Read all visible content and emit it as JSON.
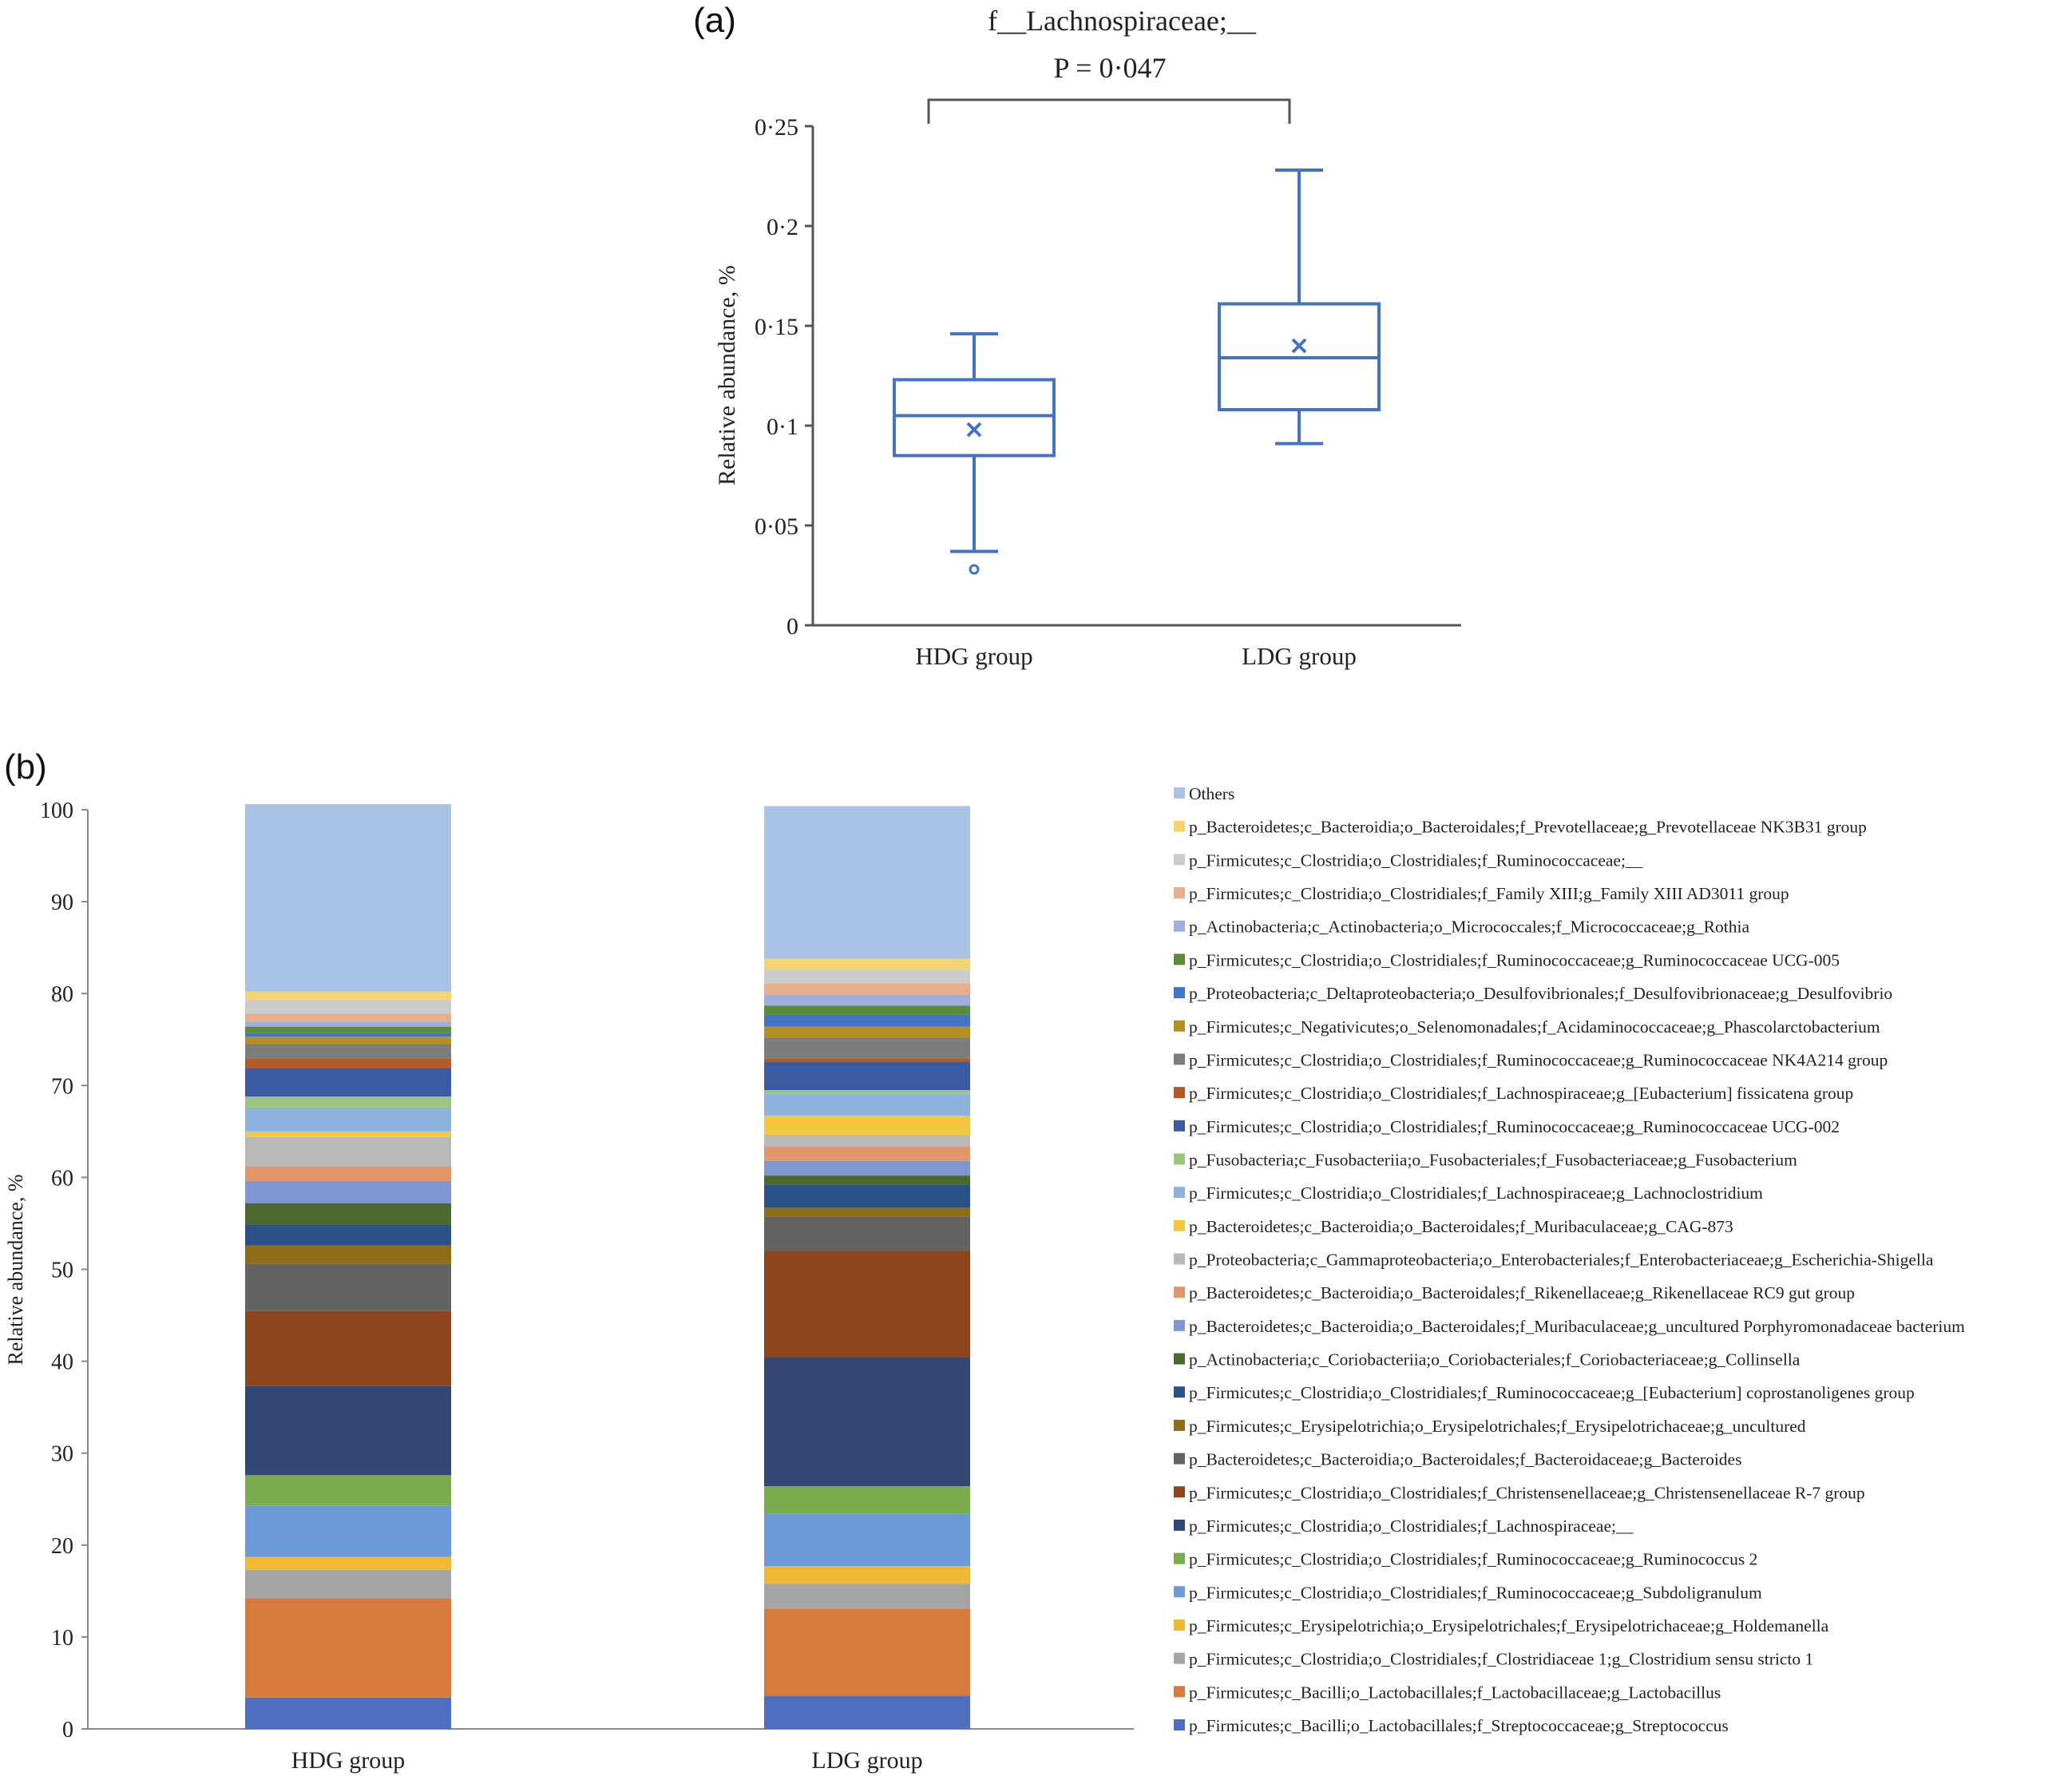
{
  "chart_data": [
    {
      "panel": "(a)",
      "type": "box",
      "title": "f__Lachnospiraceae;__",
      "annotation": "P = 0·047",
      "ylabel": "Relative abundance, %",
      "ylim": [
        0,
        0.25
      ],
      "ytick_labels": [
        "0",
        "0·05",
        "0·1",
        "0·15",
        "0·2",
        "0·25"
      ],
      "color": "#4472c4",
      "groups": [
        {
          "name": "HDG group",
          "min": 0.037,
          "q1": 0.085,
          "median": 0.105,
          "q3": 0.123,
          "max": 0.146,
          "mean": 0.098,
          "outliers": [
            0.028
          ]
        },
        {
          "name": "LDG group",
          "min": 0.091,
          "q1": 0.108,
          "median": 0.134,
          "q3": 0.161,
          "max": 0.228,
          "mean": 0.14,
          "outliers": []
        }
      ]
    },
    {
      "panel": "(b)",
      "type": "stacked_bar",
      "ylabel": "Relative abundance, %",
      "ylim": [
        0,
        100
      ],
      "ytick_labels": [
        "0",
        "10",
        "20",
        "30",
        "40",
        "50",
        "60",
        "70",
        "80",
        "90",
        "100"
      ],
      "categories": [
        "HDG group",
        "LDG group"
      ],
      "series": [
        {
          "name": "p_Firmicutes;c_Bacilli;o_Lactobacillales;f_Streptococcaceae;g_Streptococcus",
          "color": "#4e6fc0",
          "values": [
            3.4,
            3.6
          ]
        },
        {
          "name": "p_Firmicutes;c_Bacilli;o_Lactobacillales;f_Lactobacillaceae;g_Lactobacillus",
          "color": "#d77b3c",
          "values": [
            10.8,
            9.5
          ]
        },
        {
          "name": "p_Firmicutes;c_Clostridia;o_Clostridiales;f_Clostridiaceae 1;g_Clostridium sensu stricto 1",
          "color": "#a5a5a5",
          "values": [
            3.1,
            2.7
          ]
        },
        {
          "name": "p_Firmicutes;c_Erysipelotrichia;o_Erysipelotrichales;f_Erysipelotrichaceae;g_Holdemanella",
          "color": "#f0b934",
          "values": [
            1.4,
            1.9
          ]
        },
        {
          "name": "p_Firmicutes;c_Clostridia;o_Clostridiales;f_Ruminococcaceae;g_Subdoligranulum",
          "color": "#6b9bd8",
          "values": [
            5.6,
            5.7
          ]
        },
        {
          "name": "p_Firmicutes;c_Clostridia;o_Clostridiales;f_Ruminococcaceae;g_Ruminococcus 2",
          "color": "#7aab4c",
          "values": [
            3.3,
            3.0
          ]
        },
        {
          "name": "p_Firmicutes;c_Clostridia;o_Clostridiales;f_Lachnospiraceae;__",
          "color": "#334775",
          "values": [
            9.7,
            14.0
          ]
        },
        {
          "name": "p_Firmicutes;c_Clostridia;o_Clostridiales;f_Christensenellaceae;g_Christensenellaceae R-7 group",
          "color": "#8c451d",
          "values": [
            8.2,
            11.6
          ]
        },
        {
          "name": "p_Bacteroidetes;c_Bacteroidia;o_Bacteroidales;f_Bacteroidaceae;g_Bacteroides",
          "color": "#636363",
          "values": [
            5.1,
            3.7
          ]
        },
        {
          "name": "p_Firmicutes;c_Erysipelotrichia;o_Erysipelotrichales;f_Erysipelotrichaceae;g_uncultured",
          "color": "#906c16",
          "values": [
            2.0,
            1.0
          ]
        },
        {
          "name": "p_Firmicutes;c_Clostridia;o_Clostridiales;f_Ruminococcaceae;g_[Eubacterium] coprostanoligenes group",
          "color": "#2b5189",
          "values": [
            2.3,
            2.5
          ]
        },
        {
          "name": "p_Actinobacteria;c_Coriobacteriia;o_Coriobacteriales;f_Coriobacteriaceae;g_Collinsella",
          "color": "#4c6930",
          "values": [
            2.3,
            1.0
          ]
        },
        {
          "name": "p_Bacteroidetes;c_Bacteroidia;o_Bacteroidales;f_Muribaculaceae;g_uncultured Porphyromonadaceae bacterium",
          "color": "#7f96d2",
          "values": [
            2.4,
            1.6
          ]
        },
        {
          "name": "p_Bacteroidetes;c_Bacteroidia;o_Bacteroidales;f_Rikenellaceae;g_Rikenellaceae RC9 gut group",
          "color": "#e1976a",
          "values": [
            1.6,
            1.6
          ]
        },
        {
          "name": "p_Proteobacteria;c_Gammaproteobacteria;o_Enterobacteriales;f_Enterobacteriaceae;g_Escherichia-Shigella",
          "color": "#b9b9b9",
          "values": [
            3.2,
            1.2
          ]
        },
        {
          "name": "p_Bacteroidetes;c_Bacteroidia;o_Bacteroidales;f_Muribaculaceae;g_CAG-873",
          "color": "#f4c73e",
          "values": [
            0.6,
            2.1
          ]
        },
        {
          "name": "p_Firmicutes;c_Clostridia;o_Clostridiales;f_Lachnospiraceae;g_Lachnoclostridium",
          "color": "#8eb2de",
          "values": [
            2.6,
            2.4
          ]
        },
        {
          "name": "p_Fusobacteria;c_Fusobacteriia;o_Fusobacteriales;f_Fusobacteriaceae;g_Fusobacterium",
          "color": "#9cc57f",
          "values": [
            1.2,
            0.4
          ]
        },
        {
          "name": "p_Firmicutes;c_Clostridia;o_Clostridiales;f_Ruminococcaceae;g_Ruminococcaceae UCG-002",
          "color": "#3a5aa1",
          "values": [
            3.1,
            3.1
          ]
        },
        {
          "name": "p_Firmicutes;c_Clostridia;o_Clostridiales;f_Lachnospiraceae;g_[Eubacterium] fissicatena group",
          "color": "#b35a25",
          "values": [
            1.0,
            0.3
          ]
        },
        {
          "name": "p_Firmicutes;c_Clostridia;o_Clostridiales;f_Ruminococcaceae;g_Ruminococcaceae NK4A214 group",
          "color": "#7d7d7d",
          "values": [
            1.6,
            2.3
          ]
        },
        {
          "name": "p_Firmicutes;c_Negativicutes;o_Selenomonadales;f_Acidaminococcaceae;g_Phascolarctobacterium",
          "color": "#b48f23",
          "values": [
            0.8,
            1.2
          ]
        },
        {
          "name": "p_Proteobacteria;c_Deltaproteobacteria;o_Desulfovibrionales;f_Desulfovibrionaceae;g_Desulfovibrio",
          "color": "#4472c4",
          "values": [
            0.4,
            1.3
          ]
        },
        {
          "name": "p_Firmicutes;c_Clostridia;o_Clostridiales;f_Ruminococcaceae;g_Ruminococcaceae UCG-005",
          "color": "#5b8c3a",
          "values": [
            0.7,
            1.0
          ]
        },
        {
          "name": "p_Actinobacteria;c_Actinobacteria;o_Micrococcales;f_Micrococcaceae;g_Rothia",
          "color": "#9faedc",
          "values": [
            0.6,
            1.2
          ]
        },
        {
          "name": "p_Firmicutes;c_Clostridia;o_Clostridiales;f_Family XIII;g_Family XIII AD3011 group",
          "color": "#e6ae8c",
          "values": [
            0.8,
            1.2
          ]
        },
        {
          "name": "p_Firmicutes;c_Clostridia;o_Clostridiales;f_Ruminococcaceae;__",
          "color": "#cccccc",
          "values": [
            1.5,
            1.5
          ]
        },
        {
          "name": "p_Bacteroidetes;c_Bacteroidia;o_Bacteroidales;f_Prevotellaceae;g_Prevotellaceae NK3B31 group",
          "color": "#f6d470",
          "values": [
            0.9,
            1.2
          ]
        },
        {
          "name": "Others",
          "color": "#a9c3e6",
          "values": [
            20.4,
            16.6
          ]
        }
      ]
    }
  ]
}
